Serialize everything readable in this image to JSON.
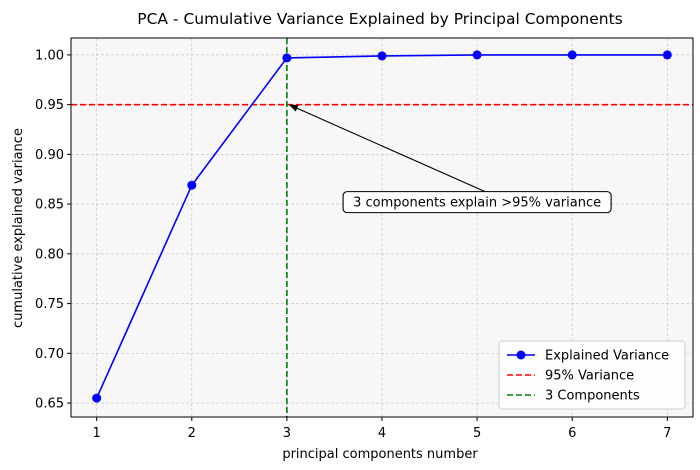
{
  "chart_data": {
    "type": "line",
    "title": "PCA - Cumulative Variance Explained by Principal Components",
    "xlabel": "principal components number",
    "ylabel": "cumulative explained variance",
    "x": [
      1,
      2,
      3,
      4,
      5,
      6,
      7
    ],
    "xticks": [
      "1",
      "2",
      "3",
      "4",
      "5",
      "6",
      "7"
    ],
    "xlim": [
      0.73,
      7.27
    ],
    "ylim": [
      0.636,
      1.017
    ],
    "yticks": [
      "0.65",
      "0.70",
      "0.75",
      "0.80",
      "0.85",
      "0.90",
      "0.95",
      "1.00"
    ],
    "ytick_values": [
      0.65,
      0.7,
      0.75,
      0.8,
      0.85,
      0.9,
      0.95,
      1.0
    ],
    "grid": true,
    "series": [
      {
        "name": "Explained Variance",
        "values": [
          0.655,
          0.869,
          0.997,
          0.999,
          1.0,
          1.0,
          1.0
        ],
        "color": "#0000ff"
      }
    ],
    "reference_lines": [
      {
        "name": "95% Variance",
        "orientation": "horizontal",
        "value": 0.95,
        "color": "#ff0000",
        "style": "dashed"
      },
      {
        "name": "3 Components",
        "orientation": "vertical",
        "value": 3,
        "color": "#008000",
        "style": "dashed"
      }
    ],
    "annotation": {
      "text": "3 components explain >95% variance",
      "point": [
        3,
        0.95
      ],
      "text_anchor": [
        5.0,
        0.852
      ]
    },
    "legend": {
      "position": "lower-right",
      "entries": [
        "Explained Variance",
        "95% Variance",
        "3 Components"
      ]
    },
    "colors": {
      "plot_background": "#f7f7f7",
      "grid": "#c8c8c8"
    }
  }
}
